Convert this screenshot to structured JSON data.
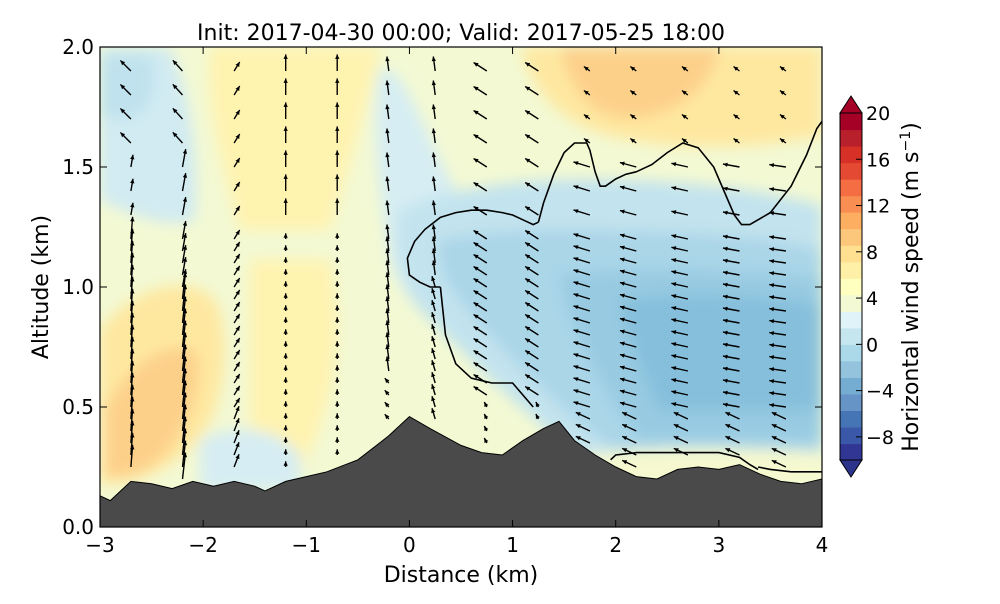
{
  "chart_data": {
    "type": "heatmap",
    "title": "Init: 2017-04-30 00:00; Valid: 2017-05-25 18:00",
    "xlabel": "Distance (km)",
    "ylabel": "Altitude (km)",
    "xlim": [
      -3,
      4
    ],
    "ylim": [
      0.0,
      2.0
    ],
    "x_ticks": [
      -3,
      -2,
      -1,
      0,
      1,
      2,
      3,
      4
    ],
    "x_tick_labels": [
      "−3",
      "−2",
      "−1",
      "0",
      "1",
      "2",
      "3",
      "4"
    ],
    "y_ticks": [
      0.0,
      0.5,
      1.0,
      1.5,
      2.0
    ],
    "y_tick_labels": [
      "0.0",
      "0.5",
      "1.0",
      "1.5",
      "2.0"
    ],
    "grid": false,
    "colorbar": {
      "label": "Horizontal wind speed (m s⁻¹)",
      "label_main": "Horizontal wind speed (m s",
      "label_sup": "−1",
      "label_close": ")",
      "range": [
        -10,
        20
      ],
      "extend": "both",
      "ticks": [
        20,
        16,
        12,
        8,
        4,
        0,
        -4,
        -8
      ],
      "tick_labels": [
        "20",
        "16",
        "12",
        "8",
        "4",
        "0",
        "−4",
        "−8"
      ],
      "colors": [
        "#313695",
        "#3a58a7",
        "#4575b4",
        "#6694c6",
        "#74add1",
        "#93c3dd",
        "#abd9e9",
        "#c6e6ef",
        "#e0f3f8",
        "#f3f9d3",
        "#ffffbf",
        "#fff0a8",
        "#fee090",
        "#fdc77b",
        "#fdae61",
        "#f98e52",
        "#f46d43",
        "#e34933",
        "#d73027",
        "#b8202b",
        "#a50026"
      ],
      "extend_colors": [
        "#2b338a",
        "#a50026"
      ]
    },
    "terrain": {
      "color": "#4a4a4a",
      "x": [
        -3.0,
        -2.9,
        -2.7,
        -2.5,
        -2.3,
        -2.1,
        -1.9,
        -1.7,
        -1.5,
        -1.4,
        -1.2,
        -1.0,
        -0.8,
        -0.5,
        -0.2,
        0.0,
        0.2,
        0.5,
        0.7,
        0.9,
        1.1,
        1.3,
        1.45,
        1.6,
        1.8,
        2.0,
        2.2,
        2.4,
        2.6,
        2.8,
        3.0,
        3.2,
        3.4,
        3.6,
        3.8,
        4.0
      ],
      "y": [
        0.13,
        0.11,
        0.19,
        0.18,
        0.16,
        0.19,
        0.17,
        0.19,
        0.17,
        0.15,
        0.19,
        0.21,
        0.23,
        0.28,
        0.38,
        0.46,
        0.41,
        0.34,
        0.31,
        0.3,
        0.36,
        0.41,
        0.44,
        0.36,
        0.3,
        0.25,
        0.21,
        0.2,
        0.24,
        0.25,
        0.24,
        0.26,
        0.22,
        0.19,
        0.18,
        0.2
      ]
    },
    "contours": [
      {
        "x": [
          0.3,
          0.2,
          0.1,
          0.0,
          -0.02,
          0.05,
          0.15,
          0.3,
          0.45,
          0.6,
          0.75,
          0.9,
          1.0,
          1.1,
          1.2,
          1.25
        ],
        "y": [
          1.0,
          1.0,
          1.02,
          1.05,
          1.12,
          1.19,
          1.24,
          1.29,
          1.31,
          1.32,
          1.32,
          1.31,
          1.3,
          1.28,
          1.26,
          1.27
        ]
      },
      {
        "x": [
          0.3,
          0.35,
          0.45,
          0.6,
          0.8,
          1.0,
          1.1,
          1.2
        ],
        "y": [
          1.0,
          0.8,
          0.68,
          0.62,
          0.6,
          0.6,
          0.55,
          0.5
        ]
      },
      {
        "x": [
          1.25,
          1.3,
          1.4,
          1.5,
          1.6,
          1.72,
          1.75,
          1.8,
          1.85,
          1.9,
          2.0,
          2.1,
          2.2,
          2.35,
          2.5,
          2.65,
          2.8,
          2.95,
          3.05,
          3.15,
          3.22,
          3.3,
          3.5,
          3.7,
          3.85,
          3.95,
          4.0
        ],
        "y": [
          1.27,
          1.35,
          1.47,
          1.56,
          1.6,
          1.6,
          1.57,
          1.48,
          1.42,
          1.42,
          1.45,
          1.47,
          1.48,
          1.51,
          1.56,
          1.6,
          1.58,
          1.5,
          1.4,
          1.3,
          1.26,
          1.26,
          1.31,
          1.42,
          1.55,
          1.66,
          1.69
        ]
      },
      {
        "x": [
          1.95,
          2.0,
          2.2,
          2.5,
          2.8,
          3.0,
          3.2,
          3.3,
          3.38
        ],
        "y": [
          0.28,
          0.3,
          0.31,
          0.31,
          0.31,
          0.31,
          0.29,
          0.26,
          0.24
        ]
      },
      {
        "x": [
          3.38,
          3.5,
          3.7,
          3.9,
          4.0
        ],
        "y": [
          0.25,
          0.24,
          0.23,
          0.23,
          0.23
        ]
      }
    ],
    "vector_columns_x": [
      -2.7,
      -2.2,
      -1.7,
      -1.2,
      -0.7,
      -0.2,
      0.25,
      0.75,
      1.25,
      1.75,
      2.2,
      2.7,
      3.2,
      3.65
    ],
    "vector_rows_y": [
      0.2,
      0.25,
      0.3,
      0.35,
      0.4,
      0.45,
      0.5,
      0.55,
      0.6,
      0.65,
      0.7,
      0.75,
      0.8,
      0.85,
      0.9,
      0.95,
      1.0,
      1.05,
      1.1,
      1.15,
      1.2,
      1.3,
      1.4,
      1.5,
      1.6,
      1.7,
      1.8,
      1.9,
      2.0
    ]
  }
}
